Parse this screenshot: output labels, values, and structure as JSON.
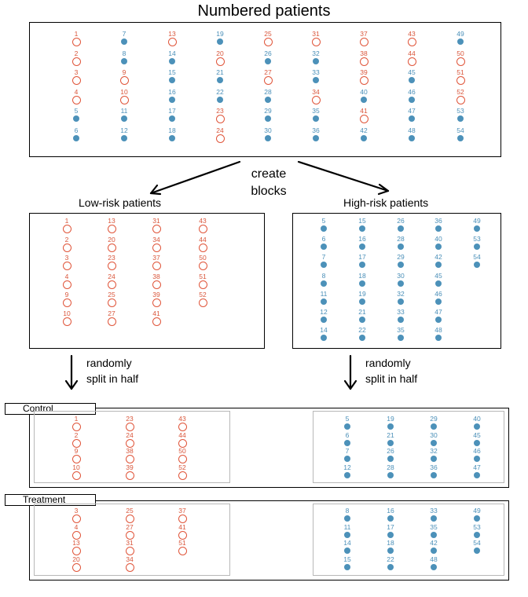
{
  "labels": {
    "title": "Numbered patients",
    "create_blocks": [
      "create",
      "blocks"
    ],
    "low_risk": "Low-risk patients",
    "high_risk": "High-risk patients",
    "split_left": [
      "randomly",
      "split in half"
    ],
    "split_right": [
      "randomly",
      "split in half"
    ],
    "control": "Control",
    "treatment": "Treatment"
  },
  "colors": {
    "low_risk": "#e0553a",
    "high_risk": "#4c91b9"
  },
  "marker_types": {
    "low": "open-circle",
    "high": "filled-dot"
  },
  "groups": {
    "all": [
      [
        [
          1,
          "low"
        ],
        [
          2,
          "low"
        ],
        [
          3,
          "low"
        ],
        [
          4,
          "low"
        ],
        [
          5,
          "high"
        ],
        [
          6,
          "high"
        ]
      ],
      [
        [
          7,
          "high"
        ],
        [
          8,
          "high"
        ],
        [
          9,
          "low"
        ],
        [
          10,
          "low"
        ],
        [
          11,
          "high"
        ],
        [
          12,
          "high"
        ]
      ],
      [
        [
          13,
          "low"
        ],
        [
          14,
          "high"
        ],
        [
          15,
          "high"
        ],
        [
          16,
          "high"
        ],
        [
          17,
          "high"
        ],
        [
          18,
          "high"
        ]
      ],
      [
        [
          19,
          "high"
        ],
        [
          20,
          "low"
        ],
        [
          21,
          "high"
        ],
        [
          22,
          "high"
        ],
        [
          23,
          "low"
        ],
        [
          24,
          "low"
        ]
      ],
      [
        [
          25,
          "low"
        ],
        [
          26,
          "high"
        ],
        [
          27,
          "low"
        ],
        [
          28,
          "high"
        ],
        [
          29,
          "high"
        ],
        [
          30,
          "high"
        ]
      ],
      [
        [
          31,
          "low"
        ],
        [
          32,
          "high"
        ],
        [
          33,
          "high"
        ],
        [
          34,
          "low"
        ],
        [
          35,
          "high"
        ],
        [
          36,
          "high"
        ]
      ],
      [
        [
          37,
          "low"
        ],
        [
          38,
          "low"
        ],
        [
          39,
          "low"
        ],
        [
          40,
          "high"
        ],
        [
          41,
          "low"
        ],
        [
          42,
          "high"
        ]
      ],
      [
        [
          43,
          "low"
        ],
        [
          44,
          "low"
        ],
        [
          45,
          "high"
        ],
        [
          46,
          "high"
        ],
        [
          47,
          "high"
        ],
        [
          48,
          "high"
        ]
      ],
      [
        [
          49,
          "high"
        ],
        [
          50,
          "low"
        ],
        [
          51,
          "low"
        ],
        [
          52,
          "low"
        ],
        [
          53,
          "high"
        ],
        [
          54,
          "high"
        ]
      ]
    ],
    "low_block": [
      [
        1,
        2,
        3,
        4,
        9,
        10
      ],
      [
        13,
        20,
        23,
        24,
        25,
        27
      ],
      [
        31,
        34,
        37,
        38,
        39,
        41
      ],
      [
        43,
        44,
        50,
        51,
        52
      ]
    ],
    "high_block": [
      [
        5,
        6,
        7,
        8,
        11,
        12,
        14
      ],
      [
        15,
        16,
        17,
        18,
        19,
        21,
        22
      ],
      [
        26,
        28,
        29,
        30,
        32,
        33,
        35
      ],
      [
        36,
        40,
        42,
        45,
        46,
        47,
        48
      ],
      [
        49,
        53,
        54
      ]
    ],
    "control_low": [
      [
        1,
        2,
        9,
        10
      ],
      [
        23,
        24,
        38,
        39
      ],
      [
        43,
        44,
        50,
        52
      ]
    ],
    "control_high": [
      [
        5,
        6,
        7,
        12
      ],
      [
        19,
        21,
        26,
        28
      ],
      [
        29,
        30,
        32,
        36
      ],
      [
        40,
        45,
        46,
        47
      ]
    ],
    "treatment_low": [
      [
        3,
        4,
        13,
        20
      ],
      [
        25,
        27,
        31,
        34
      ],
      [
        37,
        41,
        51
      ]
    ],
    "treatment_high": [
      [
        8,
        11,
        14,
        15
      ],
      [
        16,
        17,
        18,
        22
      ],
      [
        33,
        35,
        42,
        48
      ],
      [
        49,
        53,
        54
      ]
    ]
  }
}
